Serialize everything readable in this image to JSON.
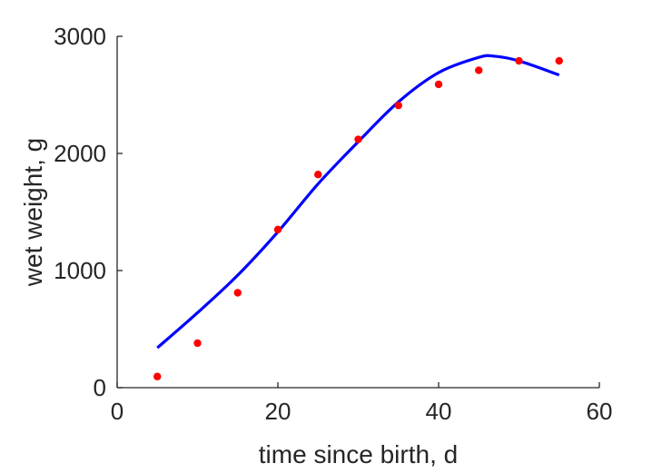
{
  "chart_data": {
    "type": "scatter",
    "xlabel": "time since birth, d",
    "ylabel": "wet weight, g",
    "xlim": [
      0,
      60
    ],
    "ylim": [
      0,
      3000
    ],
    "xticks": [
      0,
      20,
      40,
      60
    ],
    "yticks": [
      0,
      1000,
      2000,
      3000
    ],
    "x_tick_labels": [
      "0",
      "20",
      "40",
      "60"
    ],
    "y_tick_labels": [
      "0",
      "1000",
      "2000",
      "3000"
    ],
    "grid": false,
    "series": [
      {
        "kind": "scatter",
        "color": "#ff0000",
        "x": [
          5,
          10,
          15,
          20,
          25,
          30,
          35,
          40,
          45,
          50,
          55
        ],
        "y": [
          95,
          380,
          810,
          1350,
          1820,
          2120,
          2410,
          2590,
          2710,
          2790,
          2790
        ]
      },
      {
        "kind": "line",
        "color": "#0000ff",
        "x": [
          5,
          10,
          15,
          20,
          25,
          30,
          35,
          40,
          45,
          47,
          50,
          55
        ],
        "y": [
          340,
          640,
          960,
          1330,
          1740,
          2100,
          2440,
          2690,
          2820,
          2830,
          2790,
          2670
        ]
      }
    ]
  }
}
